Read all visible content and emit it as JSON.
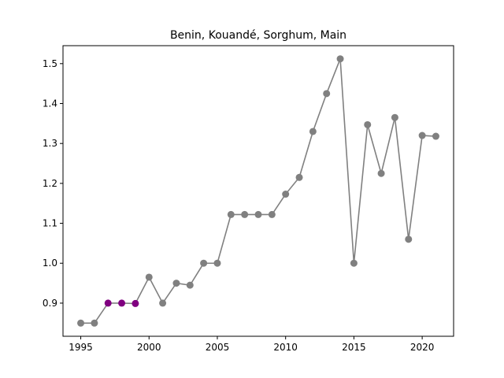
{
  "chart_data": {
    "type": "line",
    "title": "Benin, Kouandé, Sorghum, Main",
    "xlabel": "",
    "ylabel": "",
    "xlim": [
      1993.7,
      2022.3
    ],
    "ylim": [
      0.817,
      1.545
    ],
    "x_ticks": [
      "1995",
      "2000",
      "2005",
      "2010",
      "2015",
      "2020"
    ],
    "y_ticks": [
      "0.9",
      "1.0",
      "1.1",
      "1.2",
      "1.3",
      "1.4",
      "1.5"
    ],
    "grid": false,
    "line_color": "#808080",
    "marker_color": "#808080",
    "highlight_color": "#800080",
    "series": [
      {
        "x": [
          1995,
          1996,
          1997,
          1998,
          1999,
          2000,
          2001,
          2002,
          2003,
          2004,
          2005,
          2006,
          2007,
          2008,
          2009,
          2010,
          2011,
          2012,
          2013,
          2014,
          2015,
          2016,
          2017,
          2018,
          2019,
          2020,
          2021
        ],
        "y": [
          0.85,
          0.85,
          0.9,
          0.9,
          0.899,
          0.965,
          0.9,
          0.95,
          0.945,
          1.0,
          1.0,
          1.122,
          1.122,
          1.122,
          1.122,
          1.173,
          1.215,
          1.33,
          1.425,
          1.512,
          1.0,
          1.347,
          1.225,
          1.365,
          1.06,
          1.32,
          1.318
        ],
        "highlight": [
          false,
          false,
          true,
          true,
          true,
          false,
          false,
          false,
          false,
          false,
          false,
          false,
          false,
          false,
          false,
          false,
          false,
          false,
          false,
          false,
          false,
          false,
          false,
          false,
          false,
          false,
          false
        ]
      }
    ]
  }
}
